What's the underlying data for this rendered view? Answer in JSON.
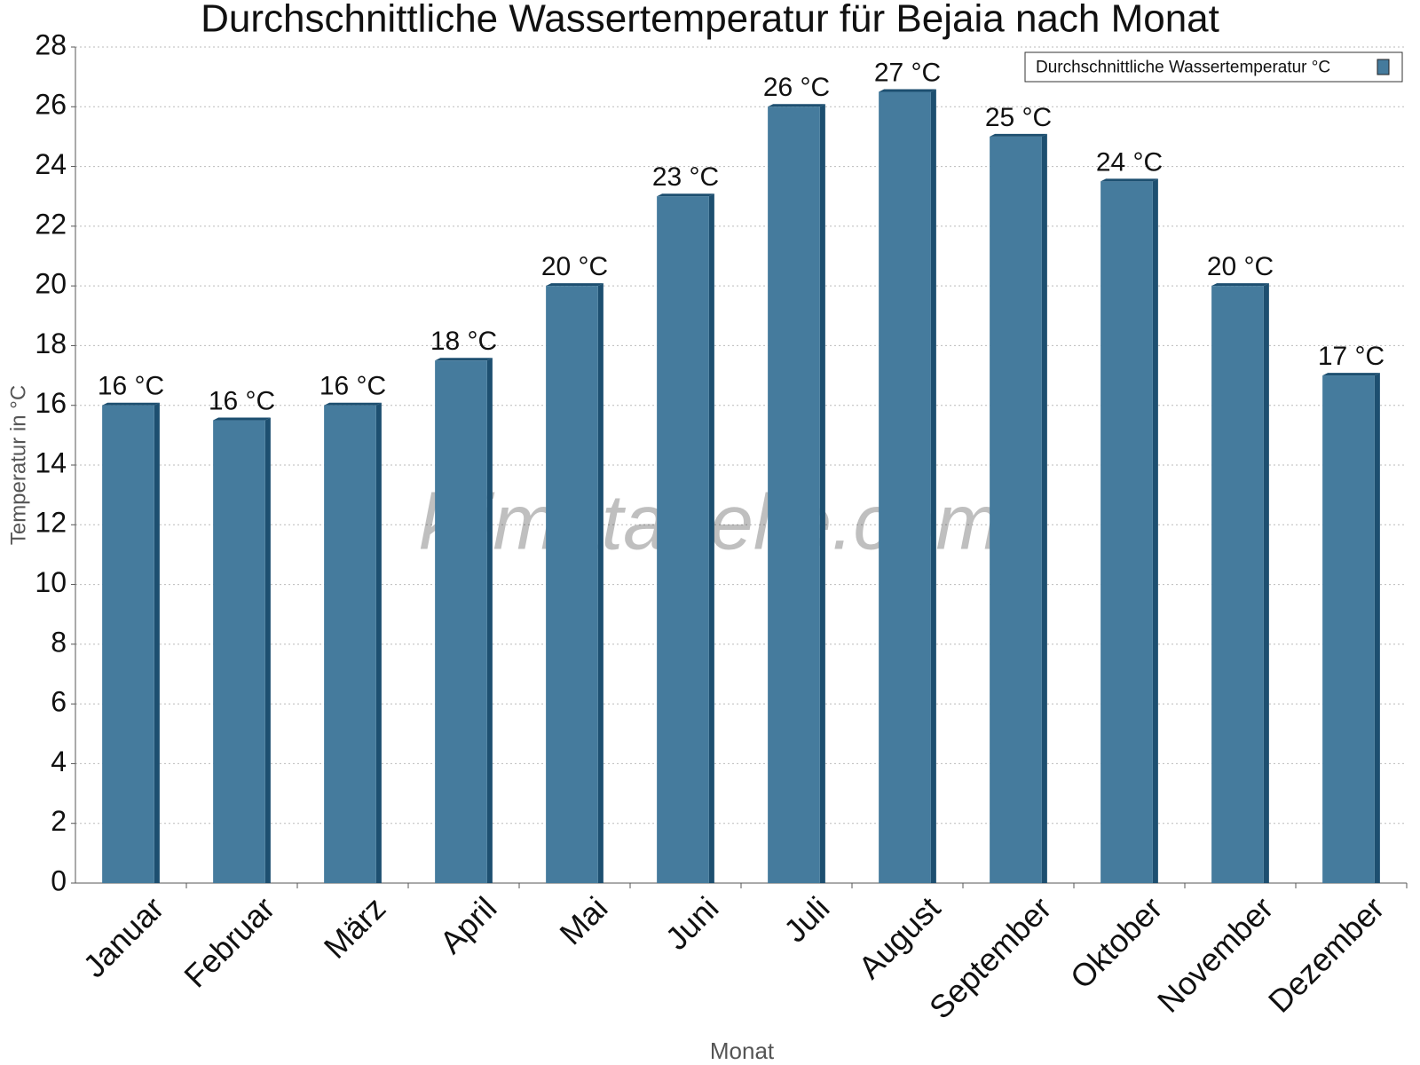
{
  "chart_data": {
    "type": "bar",
    "title": "Durchschnittliche Wassertemperatur für Bejaia nach Monat",
    "x_label": "Monat",
    "y_label": "Temperatur in °C",
    "watermark": "klimatabelle.com",
    "categories": [
      "Januar",
      "Februar",
      "März",
      "April",
      "Mai",
      "Juni",
      "Juli",
      "August",
      "September",
      "Oktober",
      "November",
      "Dezember"
    ],
    "series": [
      {
        "name": "Durchschnittliche Wassertemperatur °C",
        "color": "#457b9d",
        "values": [
          16,
          15.5,
          16,
          17.5,
          20,
          23,
          26,
          26.5,
          25,
          23.5,
          20,
          17
        ],
        "value_labels": [
          "16 °C",
          "16 °C",
          "16 °C",
          "18 °C",
          "20 °C",
          "23 °C",
          "26 °C",
          "27 °C",
          "25 °C",
          "24 °C",
          "20 °C",
          "17 °C"
        ]
      }
    ],
    "ylim": [
      0,
      28
    ],
    "yticks": [
      0,
      2,
      4,
      6,
      8,
      10,
      12,
      14,
      16,
      18,
      20,
      22,
      24,
      26,
      28
    ],
    "grid": true,
    "legend": "top-right"
  }
}
